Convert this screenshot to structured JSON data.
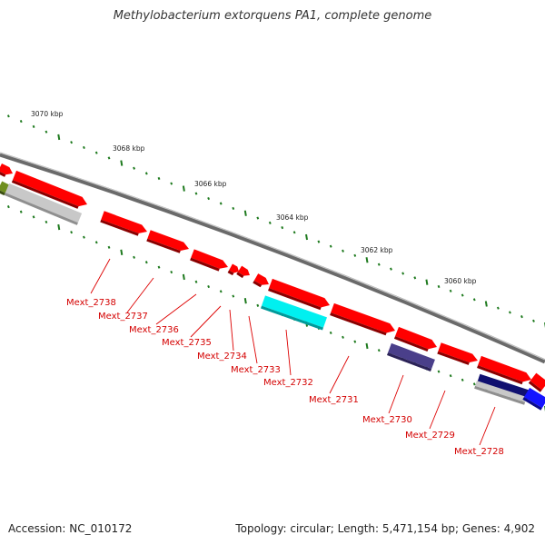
{
  "title": "Methylobacterium extorquens PA1, complete genome",
  "accession": "Accession: NC_010172",
  "summary": "Topology: circular; Length: 5,471,154 bp; Genes: 4,902",
  "colors": {
    "forward_gene": "#ff0000",
    "backbone": "#888888",
    "tick": "#1e7a1e",
    "label": "#dd0000",
    "gray_feature": "#c8c8c8",
    "cyan_feature": "#00f0f0",
    "navy_feature": "#4a3f8a",
    "blue_feature": "#1414ff",
    "olive_feature": "#6f8f1f"
  },
  "position_labels": [
    "3070 kbp",
    "3068 kbp",
    "3066 kbp",
    "3064 kbp",
    "3062 kbp",
    "3060 kbp"
  ],
  "gene_labels": [
    "Mext_2738",
    "Mext_2737",
    "Mext_2736",
    "Mext_2735",
    "Mext_2734",
    "Mext_2733",
    "Mext_2732",
    "Mext_2731",
    "Mext_2730",
    "Mext_2729",
    "Mext_2728"
  ]
}
